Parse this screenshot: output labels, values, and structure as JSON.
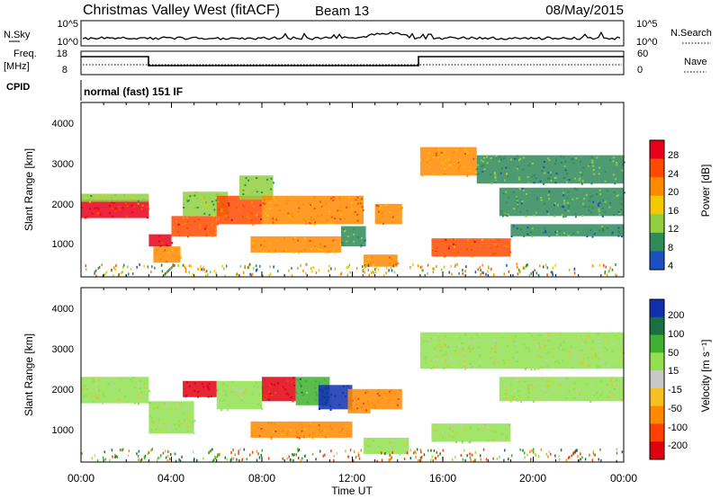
{
  "header": {
    "title": "Christmas Valley West (fitACF)",
    "beam": "Beam 13",
    "date": "08/May/2015"
  },
  "noise_panel": {
    "left_label": "N.Sky",
    "left_top_tick": "10^5",
    "left_bottom_tick": "10^0",
    "right_label": "N.Search",
    "right_top_tick": "10^5",
    "right_bottom_tick": "10^0"
  },
  "freq_panel": {
    "left_label_1": "Freq.",
    "left_label_2": "[MHz]",
    "left_top_tick": "18",
    "left_bottom_tick": "8",
    "right_label": "Nave",
    "right_top_tick": "60",
    "right_bottom_tick": "0"
  },
  "cpid_panel": {
    "label": "CPID",
    "mode_text": "normal (fast) 151 IF"
  },
  "time_axis": {
    "label": "Time UT",
    "ticks": [
      "00:00",
      "04:00",
      "08:00",
      "12:00",
      "16:00",
      "20:00",
      "00:00"
    ]
  },
  "power_colorbar": {
    "label": "Power [dB]",
    "ticks": [
      "28",
      "24",
      "20",
      "16",
      "12",
      "8",
      "4"
    ],
    "colors": [
      "#e8001a",
      "#ff4a00",
      "#ff8a00",
      "#f5c800",
      "#90d040",
      "#2f8a5a",
      "#1a50c0"
    ]
  },
  "velocity_colorbar": {
    "label": "Velocity [m s⁻¹]",
    "ticks": [
      "200",
      "100",
      "50",
      "15",
      "-15",
      "-50",
      "-100",
      "-200"
    ],
    "colors": [
      "#1030b0",
      "#1a7040",
      "#40b030",
      "#90e050",
      "#c8c8c8",
      "#f5c020",
      "#ff8a00",
      "#ff4000",
      "#e00010"
    ]
  },
  "chart_data": [
    {
      "type": "heatmap",
      "name": "power",
      "ylabel": "Slant Range [km]",
      "xlabel": "Time UT",
      "xlim": [
        0,
        24
      ],
      "ylim": [
        200,
        4500
      ],
      "yticks": [
        "1000",
        "2000",
        "3000",
        "4000"
      ],
      "clim": [
        0,
        30
      ],
      "bands": [
        {
          "t0": 0.0,
          "t1": 3.0,
          "r0": 1650,
          "r1": 2100,
          "v": 26
        },
        {
          "t0": 0.0,
          "t1": 3.0,
          "r0": 2050,
          "r1": 2250,
          "v": 12
        },
        {
          "t0": 3.0,
          "t1": 4.0,
          "r0": 950,
          "r1": 1250,
          "v": 26
        },
        {
          "t0": 3.2,
          "t1": 4.4,
          "r0": 550,
          "r1": 950,
          "v": 20
        },
        {
          "t0": 4.0,
          "t1": 6.0,
          "r0": 1200,
          "r1": 1700,
          "v": 22
        },
        {
          "t0": 4.5,
          "t1": 6.5,
          "r0": 1700,
          "r1": 2300,
          "v": 10
        },
        {
          "t0": 6.0,
          "t1": 8.0,
          "r0": 1500,
          "r1": 2200,
          "v": 22
        },
        {
          "t0": 7.0,
          "t1": 8.5,
          "r0": 2100,
          "r1": 2700,
          "v": 10
        },
        {
          "t0": 8.0,
          "t1": 12.5,
          "r0": 1500,
          "r1": 2200,
          "v": 20
        },
        {
          "t0": 7.5,
          "t1": 11.5,
          "r0": 800,
          "r1": 1200,
          "v": 18
        },
        {
          "t0": 11.5,
          "t1": 12.6,
          "r0": 950,
          "r1": 1450,
          "v": 8
        },
        {
          "t0": 12.5,
          "t1": 14.0,
          "r0": 450,
          "r1": 750,
          "v": 20
        },
        {
          "t0": 13.0,
          "t1": 14.2,
          "r0": 1500,
          "r1": 2000,
          "v": 20
        },
        {
          "t0": 15.0,
          "t1": 17.5,
          "r0": 2700,
          "r1": 3400,
          "v": 18
        },
        {
          "t0": 17.5,
          "t1": 24.0,
          "r0": 2500,
          "r1": 3200,
          "v": 8
        },
        {
          "t0": 15.5,
          "t1": 19.0,
          "r0": 700,
          "r1": 1150,
          "v": 22
        },
        {
          "t0": 18.5,
          "t1": 24.0,
          "r0": 1700,
          "r1": 2400,
          "v": 8
        },
        {
          "t0": 19.0,
          "t1": 24.0,
          "r0": 1200,
          "r1": 1500,
          "v": 6
        }
      ]
    },
    {
      "type": "heatmap",
      "name": "velocity",
      "ylabel": "Slant Range [km]",
      "xlabel": "Time UT",
      "xlim": [
        0,
        24
      ],
      "ylim": [
        200,
        4500
      ],
      "yticks": [
        "1000",
        "2000",
        "3000",
        "4000"
      ],
      "clim": [
        -200,
        200
      ],
      "bands": [
        {
          "t0": 0.0,
          "t1": 3.0,
          "r0": 1650,
          "r1": 2300,
          "v": 0
        },
        {
          "t0": 3.0,
          "t1": 5.0,
          "r0": 900,
          "r1": 1700,
          "v": 0
        },
        {
          "t0": 4.5,
          "t1": 6.0,
          "r0": 1800,
          "r1": 2200,
          "v": -180
        },
        {
          "t0": 6.0,
          "t1": 8.0,
          "r0": 1500,
          "r1": 2200,
          "v": 0
        },
        {
          "t0": 8.0,
          "t1": 9.5,
          "r0": 1700,
          "r1": 2300,
          "v": -160
        },
        {
          "t0": 9.5,
          "t1": 11.0,
          "r0": 1600,
          "r1": 2300,
          "v": 60
        },
        {
          "t0": 10.5,
          "t1": 12.0,
          "r0": 1500,
          "r1": 2100,
          "v": 220
        },
        {
          "t0": 11.8,
          "t1": 12.8,
          "r0": 1400,
          "r1": 2000,
          "v": -60
        },
        {
          "t0": 7.5,
          "t1": 12.0,
          "r0": 800,
          "r1": 1200,
          "v": -50
        },
        {
          "t0": 12.5,
          "t1": 14.5,
          "r0": 400,
          "r1": 800,
          "v": 0
        },
        {
          "t0": 12.8,
          "t1": 14.2,
          "r0": 1500,
          "r1": 2000,
          "v": -70
        },
        {
          "t0": 15.0,
          "t1": 24.0,
          "r0": 2500,
          "r1": 3400,
          "v": 0
        },
        {
          "t0": 15.5,
          "t1": 19.0,
          "r0": 700,
          "r1": 1150,
          "v": 0
        },
        {
          "t0": 18.5,
          "t1": 24.0,
          "r0": 1700,
          "r1": 2300,
          "v": 0
        }
      ]
    }
  ]
}
